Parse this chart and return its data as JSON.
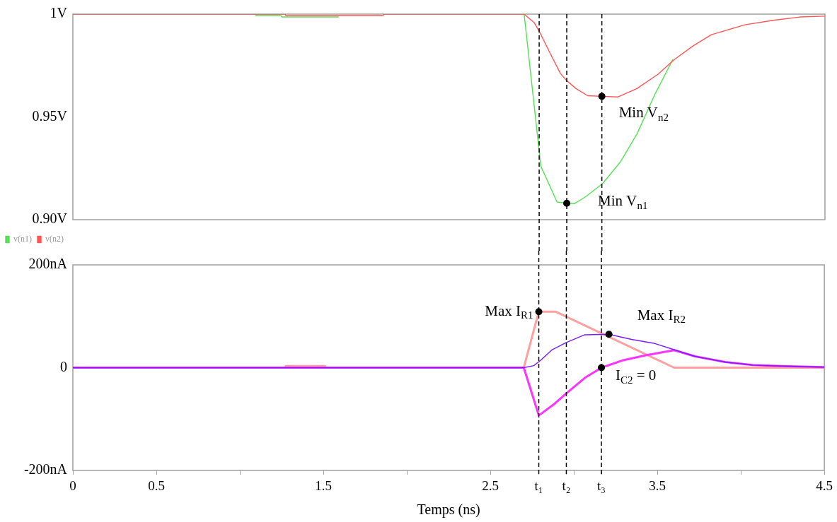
{
  "chart_data": [
    {
      "type": "line",
      "xlim": [
        0,
        4.5
      ],
      "ylim": [
        0.9,
        1.0
      ],
      "yticks": [
        {
          "value": 0.9,
          "label": "0.90V"
        },
        {
          "value": 0.95,
          "label": "0.95V"
        },
        {
          "value": 1.0,
          "label": "1V"
        }
      ],
      "tick_labels": "y",
      "grid": false,
      "legend": "bottom left",
      "marker": "none",
      "series": [
        {
          "name": "v(n1)",
          "color": "#55e055",
          "x": [
            1.09,
            1.245,
            1.25,
            1.59,
            1.6,
            2.7,
            2.8,
            2.897,
            2.955,
            3.0,
            3.065,
            3.17,
            3.275,
            3.375,
            3.485,
            3.59
          ],
          "values": [
            0.9993,
            0.9993,
            0.9986,
            0.9986,
            null,
            1,
            0.926,
            0.9086,
            0.908,
            0.9078,
            0.911,
            0.9176,
            0.928,
            0.9417,
            0.9614,
            0.978
          ]
        },
        {
          "name": "v(n2)",
          "color": "#ff5555",
          "x": [
            0,
            1.27,
            1.275,
            1.855,
            1.86,
            2.7,
            2.76,
            2.79,
            2.855,
            2.918,
            2.955,
            3.01,
            3.08,
            3.165,
            3.26,
            3.375,
            3.5,
            3.6,
            3.71,
            3.82,
            4.02,
            4.19,
            4.35,
            4.5
          ],
          "values": [
            1,
            1,
            0.9993,
            0.9993,
            1,
            1,
            0.9959,
            0.9917,
            0.981,
            0.971,
            0.9676,
            0.9638,
            0.9603,
            0.96,
            0.9597,
            0.9638,
            0.9707,
            0.978,
            0.9845,
            0.99,
            0.9948,
            0.997,
            0.9986,
            0.999
          ]
        },
        {
          "type": "scatter",
          "marker": "circle",
          "color": "#000000",
          "x": [
            3.165,
            2.955
          ],
          "values": [
            0.96,
            0.908
          ]
        }
      ],
      "ref_lines": [
        {
          "axis": "x",
          "value": 2.79,
          "color": "#000000",
          "line_style": "dashed"
        },
        {
          "axis": "x",
          "value": 2.955,
          "color": "#000000",
          "line_style": "dashed"
        },
        {
          "axis": "x",
          "value": 3.165,
          "color": "#000000",
          "line_style": "dashed"
        }
      ],
      "annotations": [
        {
          "text": "Min V$_{n2}$",
          "x": 3.165,
          "y": 0.96
        },
        {
          "text": "Min V$_{n1}$",
          "x": 2.955,
          "y": 0.908
        }
      ]
    },
    {
      "type": "line",
      "xlim": [
        0,
        4.5
      ],
      "xticks": [
        0,
        0.5,
        {
          "value": 1,
          "label": null
        },
        1.5,
        {
          "value": 2,
          "label": null
        },
        2.5,
        {
          "value": 2.79,
          "label": "t₁"
        },
        {
          "value": 2.955,
          "label": "t₂"
        },
        {
          "value": 3,
          "label": null
        },
        {
          "value": 3.165,
          "label": "t₃"
        },
        3.5,
        {
          "value": 4,
          "label": null
        },
        4.5
      ],
      "ylim": [
        -200,
        200
      ],
      "yticks": [
        {
          "value": -200,
          "label": "-200nA"
        },
        0,
        {
          "value": 200,
          "label": "200nA"
        }
      ],
      "xlabel": "Temps (ns)",
      "grid": false,
      "marker": "none",
      "series": [
        {
          "color": "#ffa0a0",
          "x": [
            0,
            1.27,
            1.275,
            1.51,
            1.515,
            2.7,
            2.79,
            2.89,
            3.6,
            4.5
          ],
          "values": [
            0,
            0,
            3,
            3,
            0,
            0,
            109,
            109,
            0,
            0
          ]
        },
        {
          "color": "#7a1cff",
          "x": [
            0,
            2.7,
            2.76,
            2.8,
            2.87,
            2.955,
            3.065,
            3.21,
            3.345,
            3.485,
            3.61,
            3.725,
            3.905,
            4.07,
            4.24,
            4.5
          ],
          "values": [
            0,
            0,
            4,
            14,
            35,
            49,
            64,
            65,
            55,
            47,
            34,
            22,
            11,
            5,
            3,
            1
          ]
        },
        {
          "color": "#ff33ff",
          "x": [
            0,
            2.7,
            2.79,
            2.885,
            2.955,
            3.065,
            3.165,
            3.29,
            3.43,
            3.6,
            3.725,
            3.905,
            4.07,
            4.24,
            4.5
          ],
          "values": [
            0,
            0,
            -93,
            -70,
            -50,
            -20,
            0,
            14,
            24,
            34,
            22,
            11,
            5,
            3,
            1
          ]
        },
        {
          "type": "scatter",
          "marker": "circle",
          "color": "#000000",
          "x": [
            2.79,
            3.21,
            3.165
          ],
          "values": [
            109,
            65,
            0
          ]
        }
      ],
      "ref_lines": [
        {
          "axis": "x",
          "value": 2.79,
          "color": "#000000",
          "line_style": "dashed"
        },
        {
          "axis": "x",
          "value": 2.955,
          "color": "#000000",
          "line_style": "dashed"
        },
        {
          "axis": "x",
          "value": 3.165,
          "color": "#000000",
          "line_style": "dashed"
        }
      ],
      "annotations": [
        {
          "text": "Max I$_{R1}$",
          "x": 2.79,
          "y": 109
        },
        {
          "text": "Max I$_{R2}$",
          "x": 3.21,
          "y": 65
        },
        {
          "text": "I$_{C2}$ = 0",
          "x": 3.165,
          "y": 0
        }
      ]
    }
  ]
}
